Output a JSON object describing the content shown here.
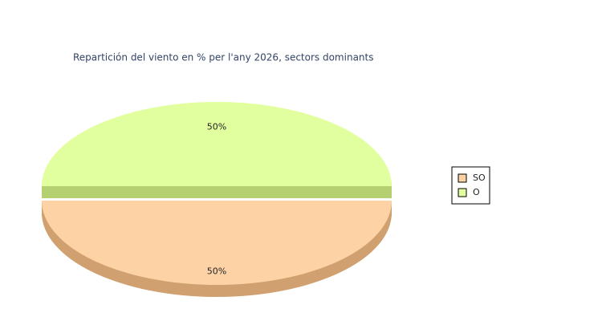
{
  "chart_data": {
    "type": "pie",
    "title": "Repartición del viento en % per l'any 2026, sectors dominants",
    "categories": [
      "SO",
      "O"
    ],
    "values": [
      50,
      50
    ],
    "value_labels": [
      "50%",
      "50%"
    ],
    "colors": [
      "#fdd3a6",
      "#e2ffa0"
    ],
    "side_colors": [
      "#d0a070",
      "#b5d070"
    ],
    "legend": "right"
  }
}
